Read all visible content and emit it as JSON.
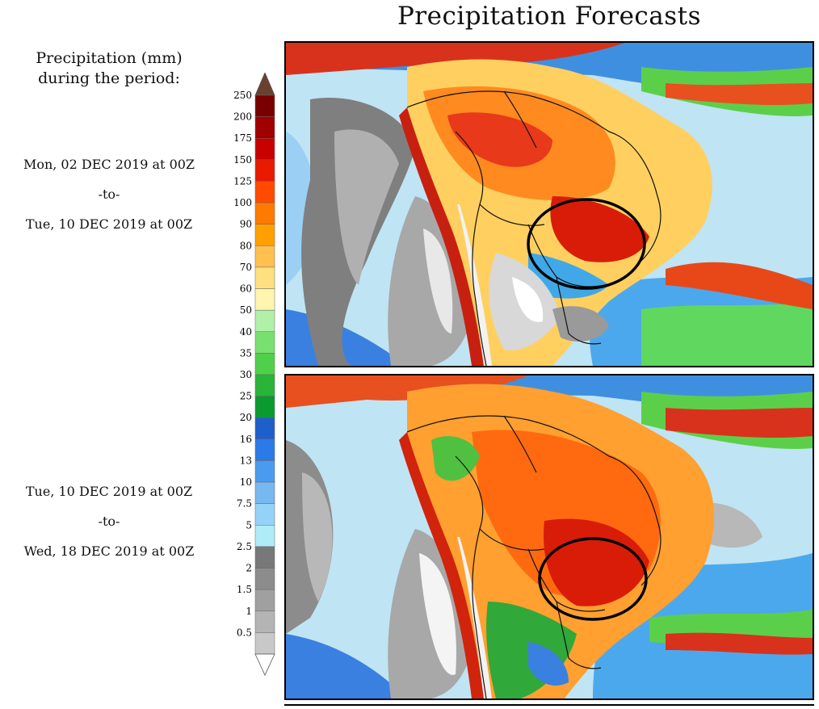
{
  "title": "Precipitation Forecasts",
  "legend": {
    "heading_line1": "Precipitation (mm)",
    "heading_line2": "during the period:",
    "levels": [
      {
        "label": "0.5",
        "color": "#c8c8c8"
      },
      {
        "label": "1",
        "color": "#b4b4b4"
      },
      {
        "label": "1.5",
        "color": "#a0a0a0"
      },
      {
        "label": "2",
        "color": "#8c8c8c"
      },
      {
        "label": "2.5",
        "color": "#787878"
      },
      {
        "label": "5",
        "color": "#b0ecf8"
      },
      {
        "label": "7.5",
        "color": "#96d2f8"
      },
      {
        "label": "10",
        "color": "#78b8f0"
      },
      {
        "label": "13",
        "color": "#4a9bf0"
      },
      {
        "label": "16",
        "color": "#2a7ae8"
      },
      {
        "label": "20",
        "color": "#1e5fcc"
      },
      {
        "label": "25",
        "color": "#0a9a30"
      },
      {
        "label": "30",
        "color": "#2ab43a"
      },
      {
        "label": "35",
        "color": "#50d04a"
      },
      {
        "label": "40",
        "color": "#78e070"
      },
      {
        "label": "50",
        "color": "#b0f0a8"
      },
      {
        "label": "60",
        "color": "#fff5b0"
      },
      {
        "label": "70",
        "color": "#ffe080"
      },
      {
        "label": "80",
        "color": "#ffc050"
      },
      {
        "label": "90",
        "color": "#ffa000"
      },
      {
        "label": "100",
        "color": "#ff7a00"
      },
      {
        "label": "125",
        "color": "#ff4a00"
      },
      {
        "label": "150",
        "color": "#e81a00"
      },
      {
        "label": "175",
        "color": "#c80000"
      },
      {
        "label": "200",
        "color": "#a00000"
      },
      {
        "label": "250",
        "color": "#780000"
      }
    ],
    "below_color": "#ffffff",
    "above_color": "#6a4030"
  },
  "periods": [
    {
      "start": "Mon, 02 DEC 2019 at 00Z",
      "sep": "-to-",
      "end": "Tue, 10 DEC 2019 at 00Z"
    },
    {
      "start": "Tue, 10 DEC 2019 at 00Z",
      "sep": "-to-",
      "end": "Wed, 18 DEC 2019 at 00Z"
    }
  ]
}
